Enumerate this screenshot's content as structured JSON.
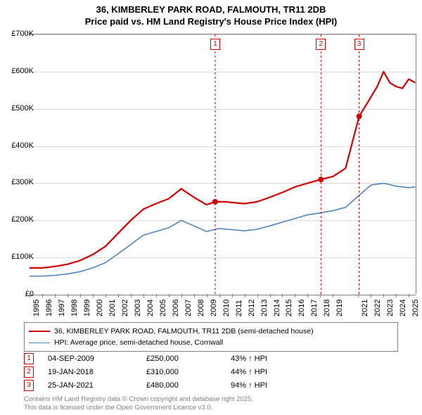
{
  "title": {
    "line1": "36, KIMBERLEY PARK ROAD, FALMOUTH, TR11 2DB",
    "line2": "Price paid vs. HM Land Registry's House Price Index (HPI)"
  },
  "chart": {
    "background_color": "#ffffff",
    "plot_border_color": "#808080",
    "grid_color": "#d9d9d9",
    "axis_color": "#808080",
    "x_year_start": 1995,
    "x_year_end": 2025.6,
    "x_tick_years": [
      1995,
      1996,
      1997,
      1998,
      1999,
      2000,
      2001,
      2002,
      2003,
      2004,
      2005,
      2006,
      2007,
      2008,
      2009,
      2010,
      2011,
      2012,
      2013,
      2014,
      2015,
      2016,
      2017,
      2018,
      2019,
      2021,
      2022,
      2023,
      2024,
      2025
    ],
    "y_min": 0,
    "y_max": 700000,
    "y_ticks": [
      {
        "v": 0,
        "label": "£0"
      },
      {
        "v": 100000,
        "label": "£100K"
      },
      {
        "v": 200000,
        "label": "£200K"
      },
      {
        "v": 300000,
        "label": "£300K"
      },
      {
        "v": 400000,
        "label": "£400K"
      },
      {
        "v": 500000,
        "label": "£500K"
      },
      {
        "v": 600000,
        "label": "£600K"
      },
      {
        "v": 700000,
        "label": "£700K"
      }
    ],
    "series_subject": {
      "label": "36, KIMBERLEY PARK ROAD, FALMOUTH, TR11 2DB (semi-detached house)",
      "color": "#d40000",
      "width": 2.2,
      "points": [
        [
          1995,
          72000
        ],
        [
          1996,
          72000
        ],
        [
          1997,
          76000
        ],
        [
          1998,
          82000
        ],
        [
          1999,
          92000
        ],
        [
          2000,
          108000
        ],
        [
          2001,
          130000
        ],
        [
          2002,
          165000
        ],
        [
          2003,
          200000
        ],
        [
          2004,
          230000
        ],
        [
          2005,
          245000
        ],
        [
          2006,
          258000
        ],
        [
          2007,
          285000
        ],
        [
          2008,
          262000
        ],
        [
          2009,
          242000
        ],
        [
          2009.68,
          250000
        ],
        [
          2010.5,
          250000
        ],
        [
          2011,
          248000
        ],
        [
          2012,
          245000
        ],
        [
          2013,
          250000
        ],
        [
          2014,
          262000
        ],
        [
          2015,
          275000
        ],
        [
          2016,
          290000
        ],
        [
          2017,
          300000
        ],
        [
          2018.05,
          310000
        ],
        [
          2019,
          318000
        ],
        [
          2020,
          340000
        ],
        [
          2021.07,
          480000
        ],
        [
          2021.8,
          520000
        ],
        [
          2022.5,
          560000
        ],
        [
          2023,
          600000
        ],
        [
          2023.5,
          570000
        ],
        [
          2024,
          560000
        ],
        [
          2024.5,
          555000
        ],
        [
          2025,
          580000
        ],
        [
          2025.5,
          570000
        ]
      ]
    },
    "series_hpi": {
      "label": "HPI: Average price, semi-detached house, Cornwall",
      "color": "#5283bb",
      "width": 1.6,
      "points": [
        [
          1995,
          50000
        ],
        [
          1996,
          50000
        ],
        [
          1997,
          52000
        ],
        [
          1998,
          56000
        ],
        [
          1999,
          62000
        ],
        [
          2000,
          72000
        ],
        [
          2001,
          86000
        ],
        [
          2002,
          110000
        ],
        [
          2003,
          135000
        ],
        [
          2004,
          160000
        ],
        [
          2005,
          170000
        ],
        [
          2006,
          180000
        ],
        [
          2007,
          200000
        ],
        [
          2008,
          185000
        ],
        [
          2009,
          170000
        ],
        [
          2010,
          178000
        ],
        [
          2011,
          175000
        ],
        [
          2012,
          172000
        ],
        [
          2013,
          176000
        ],
        [
          2014,
          185000
        ],
        [
          2015,
          195000
        ],
        [
          2016,
          205000
        ],
        [
          2017,
          215000
        ],
        [
          2018,
          220000
        ],
        [
          2019,
          226000
        ],
        [
          2020,
          235000
        ],
        [
          2021,
          265000
        ],
        [
          2022,
          295000
        ],
        [
          2023,
          300000
        ],
        [
          2024,
          292000
        ],
        [
          2025,
          288000
        ],
        [
          2025.5,
          290000
        ]
      ]
    },
    "sale_markers": [
      {
        "num": "1",
        "year": 2009.68,
        "price": 250000,
        "color": "#d40000"
      },
      {
        "num": "2",
        "year": 2018.05,
        "price": 310000,
        "color": "#d40000"
      },
      {
        "num": "3",
        "year": 2021.07,
        "price": 480000,
        "color": "#d40000"
      }
    ]
  },
  "sales": [
    {
      "num": "1",
      "date": "04-SEP-2009",
      "price": "£250,000",
      "hpi": "43% ↑ HPI",
      "color": "#d40000"
    },
    {
      "num": "2",
      "date": "19-JAN-2018",
      "price": "£310,000",
      "hpi": "44% ↑ HPI",
      "color": "#d40000"
    },
    {
      "num": "3",
      "date": "25-JAN-2021",
      "price": "£480,000",
      "hpi": "94% ↑ HPI",
      "color": "#d40000"
    }
  ],
  "footer": {
    "line1": "Contains HM Land Registry data © Crown copyright and database right 2025.",
    "line2": "This data is licensed under the Open Government Licence v3.0."
  }
}
